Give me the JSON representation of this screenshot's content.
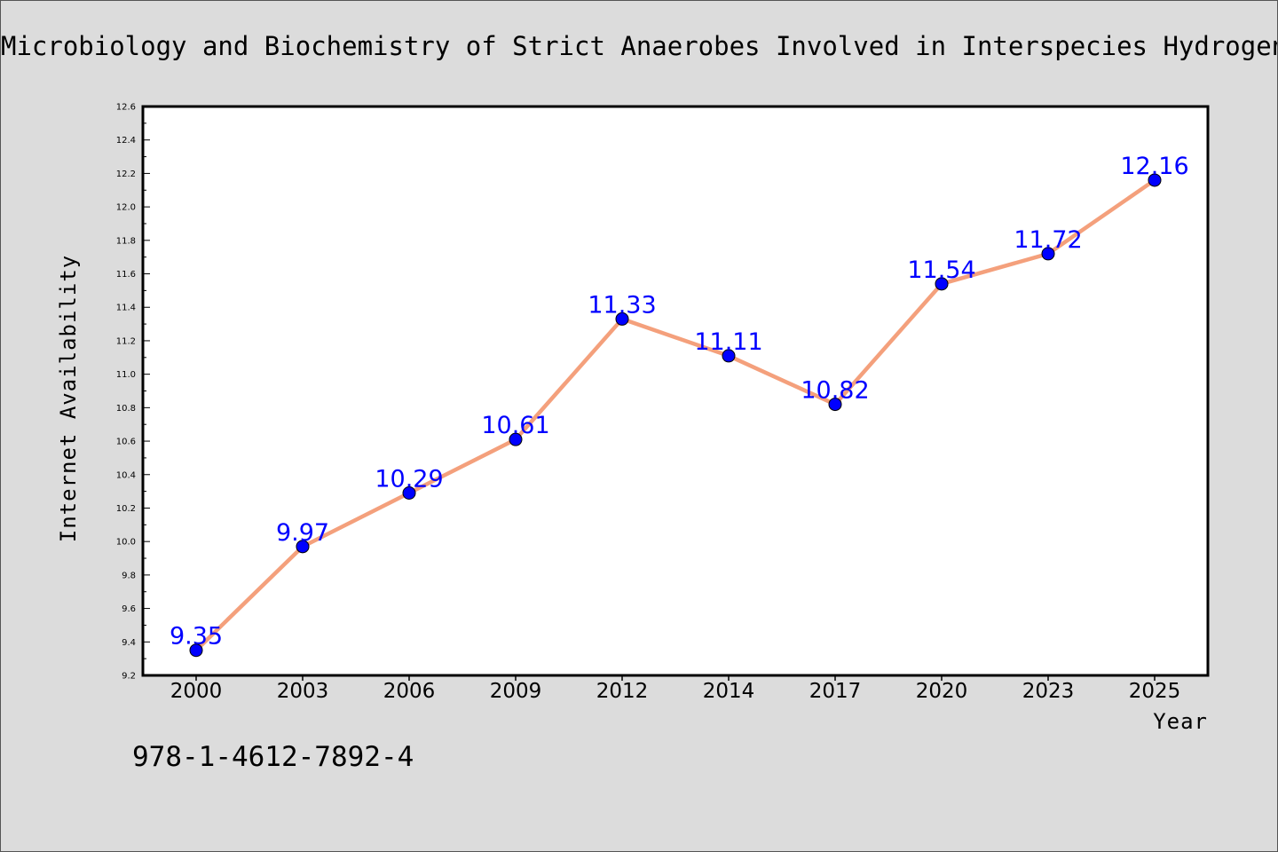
{
  "title": "Microbiology and Biochemistry of Strict Anaerobes Involved in Interspecies Hydrogen Transfer",
  "isbn": "978-1-4612-7892-4",
  "colors": {
    "background": "#dcdcdc",
    "plot_background": "#ffffff",
    "line": "#f4a07c",
    "marker": "#0000ff",
    "data_label": "#0000ff"
  },
  "chart_data": {
    "type": "line",
    "title": "Microbiology and Biochemistry of Strict Anaerobes Involved in Interspecies Hydrogen Transfer",
    "xlabel": "Year",
    "ylabel": "Internet Availability",
    "categories": [
      "2000",
      "2003",
      "2006",
      "2009",
      "2012",
      "2014",
      "2017",
      "2020",
      "2023",
      "2025"
    ],
    "values": [
      9.35,
      9.97,
      10.29,
      10.61,
      11.33,
      11.11,
      10.82,
      11.54,
      11.72,
      12.16
    ],
    "data_labels": [
      "9.35",
      "9.97",
      "10.29",
      "10.61",
      "11.33",
      "11.11",
      "10.82",
      "11.54",
      "11.72",
      "12.16"
    ],
    "ylim": [
      9.2,
      12.6
    ],
    "yticks": [
      "9.2",
      "9.4",
      "9.6",
      "9.8",
      "10.0",
      "10.2",
      "10.4",
      "10.6",
      "10.8",
      "11.0",
      "11.2",
      "11.4",
      "11.6",
      "11.8",
      "12.0",
      "12.2",
      "12.4",
      "12.6"
    ],
    "grid": false,
    "legend": "none"
  }
}
